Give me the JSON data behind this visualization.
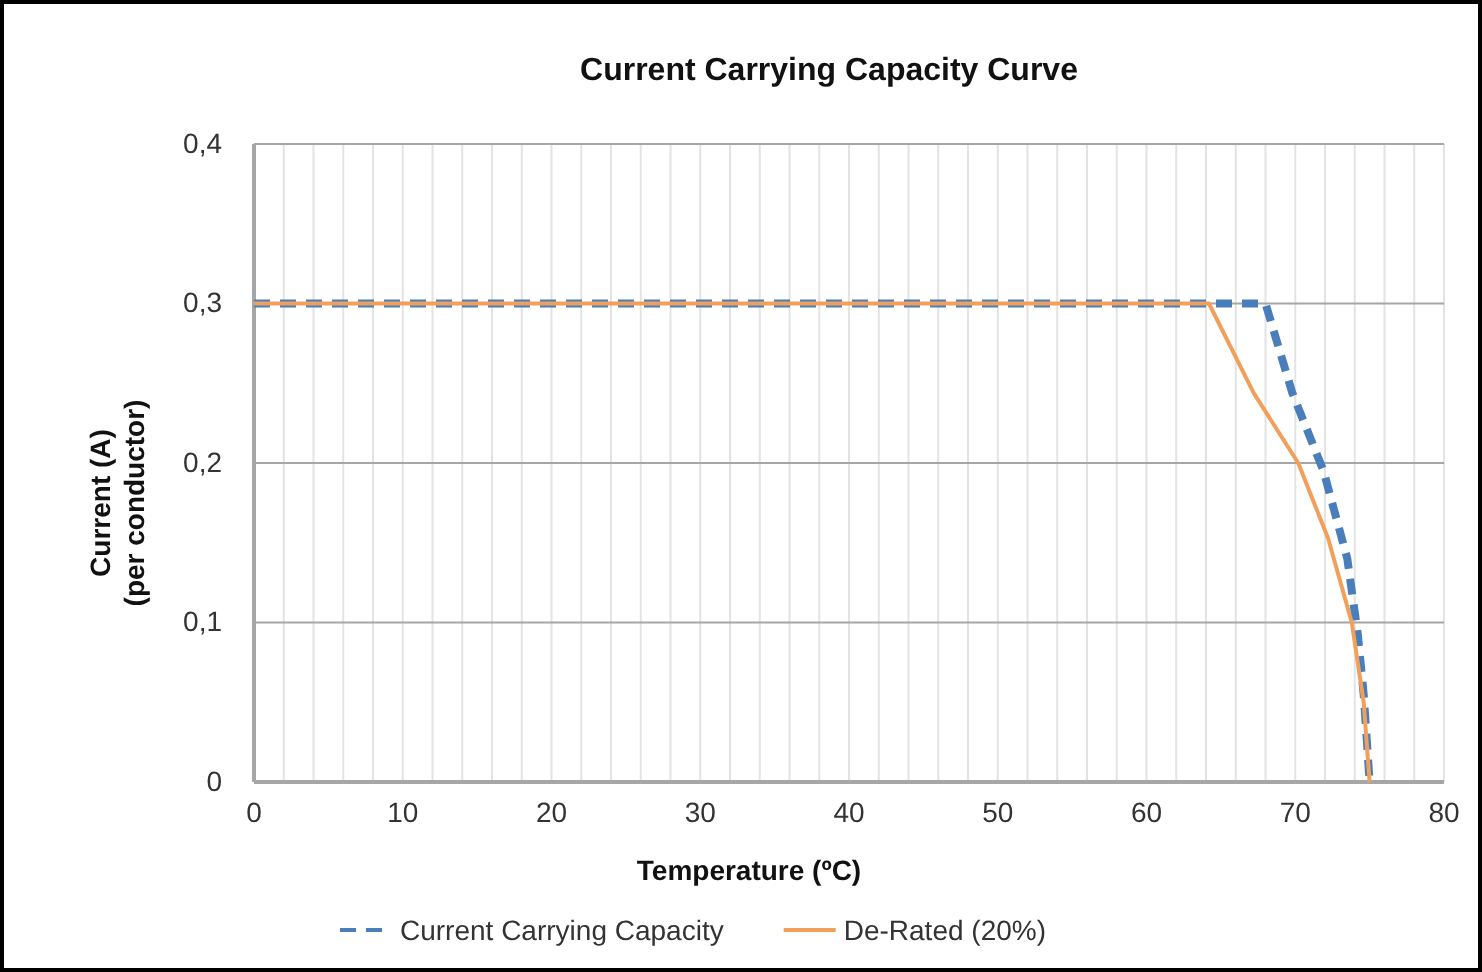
{
  "chart_data": {
    "type": "line",
    "title": "Current Carrying Capacity Curve",
    "xlabel": "Temperature (ºC)",
    "ylabel": "Current (A)\n(per conductor)",
    "xlim": [
      0,
      80
    ],
    "xticks": [
      0,
      10,
      20,
      30,
      40,
      50,
      60,
      70,
      80
    ],
    "ylim": [
      0,
      0.4
    ],
    "yticks": [
      {
        "value": 0,
        "label": "0"
      },
      {
        "value": 0.1,
        "label": "0,1"
      },
      {
        "value": 0.2,
        "label": "0,2"
      },
      {
        "value": 0.3,
        "label": "0,3"
      },
      {
        "value": 0.4,
        "label": "0,4"
      }
    ],
    "grid": true,
    "legend": "bottom",
    "marker": "none",
    "series": [
      {
        "name": "Current Carrying Capacity",
        "color": "#4a7ebb",
        "line_style": "dashed",
        "x": [
          0,
          68,
          69.8,
          71.9,
          73.5,
          74.2,
          74.6,
          75
        ],
        "values": [
          0.3,
          0.3,
          0.244,
          0.195,
          0.14,
          0.093,
          0.055,
          0
        ]
      },
      {
        "name": "De-Rated (20%)",
        "color": "#f0a05a",
        "line_style": "solid",
        "x": [
          0,
          64.2,
          67.2,
          70.2,
          72.2,
          73.8,
          74.6,
          75
        ],
        "values": [
          0.3,
          0.3,
          0.244,
          0.2,
          0.153,
          0.1,
          0.05,
          0
        ]
      }
    ]
  }
}
